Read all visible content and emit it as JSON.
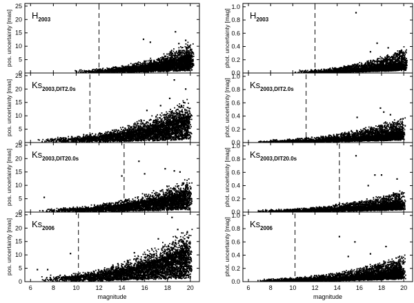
{
  "chart_data": [
    {
      "type": "scatter",
      "label_main": "H",
      "label_sub": "2003",
      "ylabel": "pos. uncertainty [mas]",
      "xlabel": "",
      "xlim": [
        5.5,
        20.8
      ],
      "ylim": [
        0,
        26
      ],
      "yticks": [
        "0",
        "5",
        "10",
        "15",
        "20",
        "25"
      ],
      "xticks": [],
      "cutoff_x": 12.0,
      "points": {
        "seed": 11,
        "n": 3200,
        "xmin": 9.8,
        "xpeak": 19.2,
        "yscale": 4.0,
        "spread": 1.3,
        "outliers": [
          [
            15.9,
            12.6
          ],
          [
            18.7,
            15.4
          ],
          [
            19.6,
            12.2
          ],
          [
            16.5,
            11.5
          ],
          [
            19.0,
            11.0
          ]
        ]
      }
    },
    {
      "type": "scatter",
      "label_main": "H",
      "label_sub": "2003",
      "ylabel": "phot. uncertainty [mag]",
      "xlabel": "",
      "xlim": [
        5.5,
        20.8
      ],
      "ylim": [
        0,
        1.05
      ],
      "yticks": [
        "0.0",
        "0.2",
        "0.4",
        "0.6",
        "0.8",
        "1.0"
      ],
      "xticks": [],
      "cutoff_x": 12.0,
      "points": {
        "seed": 12,
        "n": 3200,
        "xmin": 10.0,
        "xpeak": 19.2,
        "yscale": 0.18,
        "spread": 0.5,
        "outliers": [
          [
            15.7,
            0.91
          ],
          [
            17.6,
            0.45
          ],
          [
            18.6,
            0.38
          ],
          [
            17.0,
            0.32
          ]
        ]
      }
    },
    {
      "type": "scatter",
      "label_main": "Ks",
      "label_sub": "2003,DIT2.0s",
      "ylabel": "pos. uncertainty [mas]",
      "xlabel": "",
      "xlim": [
        5.5,
        20.8
      ],
      "ylim": [
        0,
        26
      ],
      "yticks": [
        "0",
        "5",
        "10",
        "15",
        "20",
        "25"
      ],
      "xticks": [],
      "cutoff_x": 11.2,
      "points": {
        "seed": 21,
        "n": 3800,
        "xmin": 6.6,
        "xpeak": 19.0,
        "yscale": 5.0,
        "spread": 1.7,
        "outliers": [
          [
            18.6,
            23.4
          ],
          [
            19.6,
            20.0
          ],
          [
            16.2,
            12.0
          ],
          [
            18.2,
            16.5
          ],
          [
            17.4,
            13.8
          ]
        ]
      }
    },
    {
      "type": "scatter",
      "label_main": "Ks",
      "label_sub": "2003,DIT2.0s",
      "ylabel": "phot. uncertainty [mag]",
      "xlabel": "",
      "xlim": [
        5.5,
        20.8
      ],
      "ylim": [
        0,
        1.05
      ],
      "yticks": [
        "0.0",
        "0.2",
        "0.4",
        "0.6",
        "0.8",
        "1.0"
      ],
      "xticks": [],
      "cutoff_x": 11.2,
      "points": {
        "seed": 22,
        "n": 3800,
        "xmin": 6.6,
        "xpeak": 19.0,
        "yscale": 0.17,
        "spread": 0.6,
        "outliers": [
          [
            17.9,
            0.52
          ],
          [
            18.2,
            0.46
          ],
          [
            18.8,
            0.42
          ],
          [
            15.8,
            0.38
          ]
        ]
      }
    },
    {
      "type": "scatter",
      "label_main": "Ks",
      "label_sub": "2003,DIT20.0s",
      "ylabel": "pos. uncertainty [mas]",
      "xlabel": "",
      "xlim": [
        5.5,
        20.8
      ],
      "ylim": [
        0,
        26
      ],
      "yticks": [
        "0",
        "5",
        "10",
        "15",
        "20",
        "25"
      ],
      "xticks": [],
      "cutoff_x": 14.2,
      "points": {
        "seed": 31,
        "n": 3600,
        "xmin": 6.6,
        "xpeak": 19.0,
        "yscale": 4.0,
        "spread": 1.6,
        "outliers": [
          [
            14.0,
            13.5
          ],
          [
            15.5,
            19.0
          ],
          [
            17.8,
            16.2
          ],
          [
            18.6,
            15.4
          ],
          [
            16.0,
            14.3
          ],
          [
            19.1,
            15.0
          ],
          [
            13.0,
            3.0
          ],
          [
            7.2,
            5.5
          ]
        ]
      }
    },
    {
      "type": "scatter",
      "label_main": "Ks",
      "label_sub": "2003,DIT20.0s",
      "ylabel": "phot. uncertainty [mag]",
      "xlabel": "",
      "xlim": [
        5.5,
        20.8
      ],
      "ylim": [
        0,
        1.05
      ],
      "yticks": [
        "0.0",
        "0.2",
        "0.4",
        "0.6",
        "0.8",
        "1.0"
      ],
      "xticks": [],
      "cutoff_x": 14.2,
      "points": {
        "seed": 32,
        "n": 3600,
        "xmin": 6.6,
        "xpeak": 19.0,
        "yscale": 0.15,
        "spread": 0.6,
        "outliers": [
          [
            15.7,
            0.85
          ],
          [
            17.4,
            0.56
          ],
          [
            18.0,
            0.56
          ],
          [
            19.4,
            0.5
          ],
          [
            16.8,
            0.4
          ]
        ]
      }
    },
    {
      "type": "scatter",
      "label_main": "Ks",
      "label_sub": "2006",
      "ylabel": "pos. uncertainty [mas]",
      "xlabel": "magnitude",
      "xlim": [
        5.5,
        20.8
      ],
      "ylim": [
        0,
        26
      ],
      "yticks": [
        "0",
        "5",
        "10",
        "15",
        "20",
        "25"
      ],
      "xticks": [
        "6",
        "8",
        "10",
        "12",
        "14",
        "16",
        "18",
        "20"
      ],
      "cutoff_x": 10.2,
      "points": {
        "seed": 41,
        "n": 4200,
        "xmin": 6.6,
        "xpeak": 19.0,
        "yscale": 6.0,
        "spread": 1.8,
        "outliers": [
          [
            18.4,
            24.0
          ],
          [
            18.9,
            19.5
          ],
          [
            9.5,
            10.5
          ],
          [
            15.1,
            10.8
          ],
          [
            6.6,
            4.5
          ],
          [
            7.5,
            4.5
          ],
          [
            17.2,
            16.0
          ],
          [
            19.5,
            13.2
          ]
        ]
      }
    },
    {
      "type": "scatter",
      "label_main": "Ks",
      "label_sub": "2006",
      "ylabel": "phot. uncertainty [mag]",
      "xlabel": "magnitude",
      "xlim": [
        5.5,
        20.8
      ],
      "ylim": [
        0,
        1.05
      ],
      "yticks": [
        "0.0",
        "0.2",
        "0.4",
        "0.6",
        "0.8",
        "1.0"
      ],
      "xticks": [
        "6",
        "8",
        "10",
        "12",
        "14",
        "16",
        "18",
        "20"
      ],
      "cutoff_x": 10.2,
      "points": {
        "seed": 42,
        "n": 4200,
        "xmin": 6.6,
        "xpeak": 19.0,
        "yscale": 0.17,
        "spread": 0.7,
        "outliers": [
          [
            14.2,
            0.68
          ],
          [
            15.6,
            0.6
          ],
          [
            18.4,
            0.53
          ],
          [
            17.0,
            0.42
          ],
          [
            15.0,
            0.38
          ]
        ]
      }
    }
  ]
}
